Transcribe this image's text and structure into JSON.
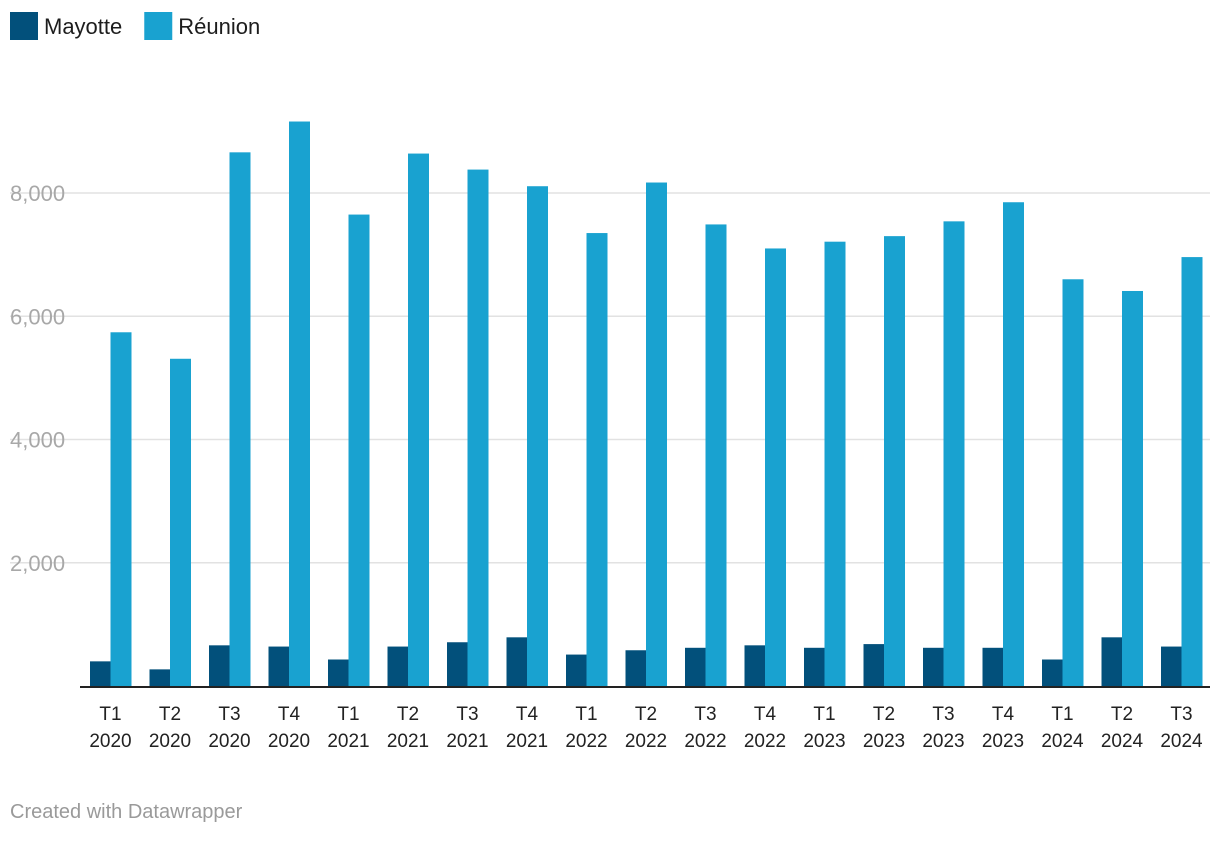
{
  "chart_data": {
    "type": "bar",
    "title": "",
    "xlabel": "",
    "ylabel": "",
    "ylim": [
      0,
      9500
    ],
    "yticks": [
      2000,
      4000,
      6000,
      8000
    ],
    "ytick_labels": [
      "2,000",
      "4,000",
      "6,000",
      "8,000"
    ],
    "grid": true,
    "legend_position": "top-left",
    "categories": [
      [
        "T1",
        "2020"
      ],
      [
        "T2",
        "2020"
      ],
      [
        "T3",
        "2020"
      ],
      [
        "T4",
        "2020"
      ],
      [
        "T1",
        "2021"
      ],
      [
        "T2",
        "2021"
      ],
      [
        "T3",
        "2021"
      ],
      [
        "T4",
        "2021"
      ],
      [
        "T1",
        "2022"
      ],
      [
        "T2",
        "2022"
      ],
      [
        "T3",
        "2022"
      ],
      [
        "T4",
        "2022"
      ],
      [
        "T1",
        "2023"
      ],
      [
        "T2",
        "2023"
      ],
      [
        "T3",
        "2023"
      ],
      [
        "T4",
        "2023"
      ],
      [
        "T1",
        "2024"
      ],
      [
        "T2",
        "2024"
      ],
      [
        "T3",
        "2024"
      ]
    ],
    "series": [
      {
        "name": "Mayotte",
        "color": "#02507b",
        "values": [
          400,
          270,
          660,
          640,
          430,
          640,
          710,
          790,
          510,
          580,
          620,
          660,
          620,
          680,
          620,
          620,
          430,
          790,
          640
        ]
      },
      {
        "name": "Réunion",
        "color": "#19a2d0",
        "values": [
          5740,
          5310,
          8660,
          9160,
          7650,
          8640,
          8380,
          8110,
          7350,
          8170,
          7490,
          7100,
          7210,
          7300,
          7540,
          7850,
          6600,
          6410,
          6960
        ]
      }
    ]
  },
  "credit": "Created with Datawrapper",
  "colors": {
    "grid": "#e2e2e2",
    "axis": "#222222",
    "background": "#ffffff"
  }
}
